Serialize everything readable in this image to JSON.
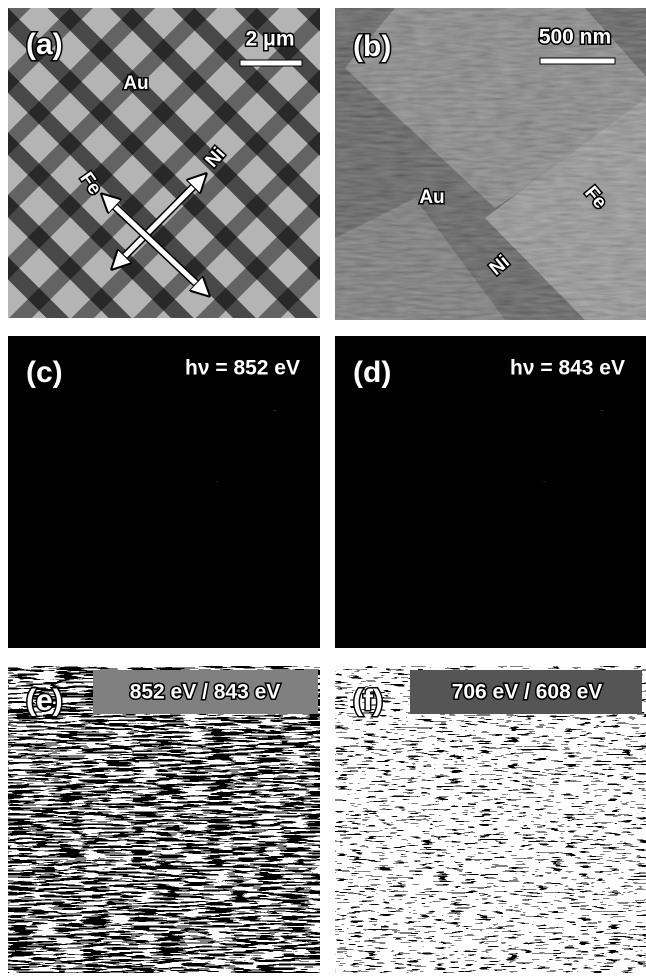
{
  "panels": [
    {
      "label": "(a)",
      "scale_bar": "2 μm",
      "annotations": [
        "Au",
        "Fe",
        "Ni"
      ]
    },
    {
      "label": "(b)",
      "scale_bar": "500 nm",
      "annotations": [
        "Au",
        "Fe",
        "Ni"
      ]
    },
    {
      "label": "(c)",
      "energy": "hν = 852 eV"
    },
    {
      "label": "(d)",
      "energy": "hν = 843 eV"
    },
    {
      "label": "(e)",
      "ratio": "852 eV / 843 eV"
    },
    {
      "label": "(f)",
      "ratio": "706 eV / 608 eV"
    }
  ]
}
